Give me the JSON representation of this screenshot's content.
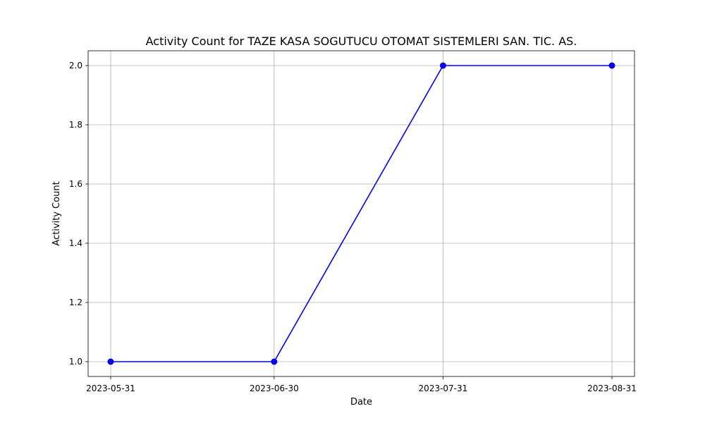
{
  "chart_data": {
    "type": "line",
    "title": "Activity Count for TAZE KASA SOGUTUCU OTOMAT SISTEMLERI SAN. TIC. AS.",
    "xlabel": "Date",
    "ylabel": "Activity Count",
    "x": [
      "2023-05-31",
      "2023-06-30",
      "2023-07-31",
      "2023-08-31"
    ],
    "series": [
      {
        "values": [
          1.0,
          1.0,
          2.0,
          2.0
        ],
        "color": "#0000ff",
        "marker": "circle"
      }
    ],
    "ylim": [
      0.95,
      2.05
    ],
    "yticks": [
      {
        "value": 1.0,
        "label": "1.0"
      },
      {
        "value": 1.2,
        "label": "1.2"
      },
      {
        "value": 1.4,
        "label": "1.4"
      },
      {
        "value": 1.6,
        "label": "1.6"
      },
      {
        "value": 1.8,
        "label": "1.8"
      },
      {
        "value": 2.0,
        "label": "2.0"
      }
    ],
    "grid": true,
    "legend": "none"
  }
}
